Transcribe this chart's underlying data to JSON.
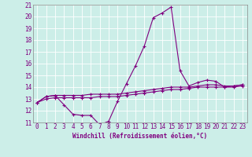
{
  "xlabel": "Windchill (Refroidissement éolien,°C)",
  "background_color": "#cceee8",
  "line_color": "#800080",
  "grid_color": "#ffffff",
  "xlim": [
    -0.5,
    23.5
  ],
  "ylim": [
    11,
    21
  ],
  "yticks": [
    11,
    12,
    13,
    14,
    15,
    16,
    17,
    18,
    19,
    20,
    21
  ],
  "xticks": [
    0,
    1,
    2,
    3,
    4,
    5,
    6,
    7,
    8,
    9,
    10,
    11,
    12,
    13,
    14,
    15,
    16,
    17,
    18,
    19,
    20,
    21,
    22,
    23
  ],
  "series1_x": [
    0,
    1,
    2,
    3,
    4,
    5,
    6,
    7,
    8,
    9,
    10,
    11,
    12,
    13,
    14,
    15,
    16,
    17,
    18,
    19,
    20,
    21,
    22,
    23
  ],
  "series1_y": [
    12.7,
    13.2,
    13.3,
    12.5,
    11.7,
    11.6,
    11.6,
    10.8,
    11.1,
    12.8,
    14.3,
    15.8,
    17.5,
    19.9,
    20.3,
    20.8,
    15.4,
    14.1,
    14.4,
    14.6,
    14.5,
    14.0,
    14.1,
    14.2
  ],
  "series2_x": [
    0,
    1,
    2,
    3,
    4,
    5,
    6,
    7,
    8,
    9,
    10,
    11,
    12,
    13,
    14,
    15,
    16,
    17,
    18,
    19,
    20,
    21,
    22,
    23
  ],
  "series2_y": [
    12.7,
    13.2,
    13.3,
    13.3,
    13.3,
    13.3,
    13.4,
    13.4,
    13.4,
    13.4,
    13.5,
    13.6,
    13.7,
    13.8,
    13.9,
    14.0,
    14.0,
    14.0,
    14.1,
    14.2,
    14.2,
    14.1,
    14.1,
    14.2
  ],
  "series3_x": [
    0,
    1,
    2,
    3,
    4,
    5,
    6,
    7,
    8,
    9,
    10,
    11,
    12,
    13,
    14,
    15,
    16,
    17,
    18,
    19,
    20,
    21,
    22,
    23
  ],
  "series3_y": [
    12.7,
    13.0,
    13.1,
    13.1,
    13.1,
    13.1,
    13.1,
    13.2,
    13.2,
    13.2,
    13.3,
    13.4,
    13.5,
    13.6,
    13.7,
    13.8,
    13.8,
    13.9,
    14.0,
    14.0,
    14.0,
    14.0,
    14.0,
    14.1
  ],
  "marker_size": 3,
  "line_width": 0.8,
  "tick_fontsize": 5.5,
  "xlabel_fontsize": 5.5
}
